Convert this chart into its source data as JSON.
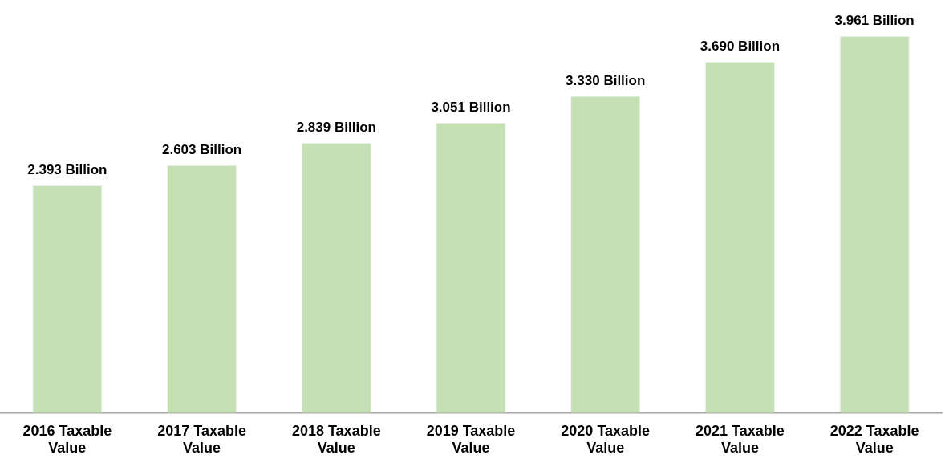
{
  "chart_data": {
    "type": "bar",
    "categories": [
      "2016 Taxable Value",
      "2017 Taxable Value",
      "2018 Taxable Value",
      "2019 Taxable Value",
      "2020 Taxable Value",
      "2021 Taxable Value",
      "2022 Taxable Value"
    ],
    "values": [
      2.393,
      2.603,
      2.839,
      3.051,
      3.33,
      3.69,
      3.961
    ],
    "value_labels": [
      "2.393 Billion",
      "2.603 Billion",
      "2.839 Billion",
      "3.051 Billion",
      "3.330 Billion",
      "3.690 Billion",
      "3.961 Billion"
    ],
    "color": "#c5e0b4",
    "grid": false,
    "legend": false
  }
}
